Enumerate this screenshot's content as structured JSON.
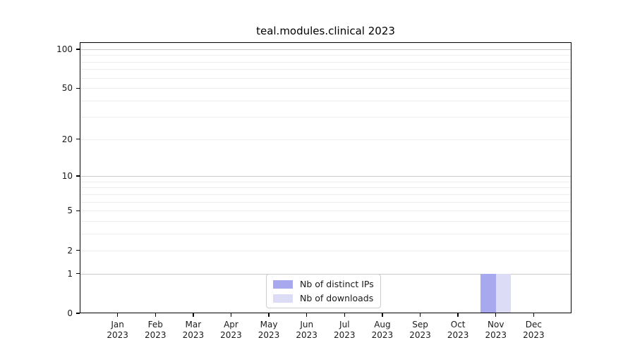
{
  "chart_data": {
    "type": "bar",
    "title": "teal.modules.clinical 2023",
    "xlabel": "",
    "ylabel": "",
    "categories": [
      "Jan 2023",
      "Feb 2023",
      "Mar 2023",
      "Apr 2023",
      "May 2023",
      "Jun 2023",
      "Jul 2023",
      "Aug 2023",
      "Sep 2023",
      "Oct 2023",
      "Nov 2023",
      "Dec 2023"
    ],
    "series": [
      {
        "name": "Nb of distinct IPs",
        "color": "#a8a8ef",
        "values": [
          0,
          0,
          0,
          0,
          0,
          0,
          0,
          0,
          0,
          0,
          1,
          0
        ]
      },
      {
        "name": "Nb of downloads",
        "color": "#dcdcf7",
        "values": [
          0,
          0,
          0,
          0,
          0,
          0,
          0,
          0,
          0,
          0,
          1,
          0
        ]
      }
    ],
    "y_scale": "log10(1+y)",
    "ylim": [
      0,
      113
    ],
    "y_tick_labels": [
      0,
      1,
      2,
      5,
      10,
      20,
      50,
      100
    ],
    "y_major_gridlines": [
      1,
      10,
      100
    ],
    "y_minor_gridlines": [
      2,
      3,
      4,
      5,
      6,
      7,
      8,
      9,
      20,
      30,
      40,
      50,
      60,
      70,
      80,
      90
    ],
    "grid": true,
    "legend_position": "lower center",
    "colors": {
      "major_grid": "#c9c9c9",
      "minor_grid": "#ededed",
      "axis": "#000000",
      "text": "#1a1a1a",
      "background": "#ffffff"
    }
  }
}
